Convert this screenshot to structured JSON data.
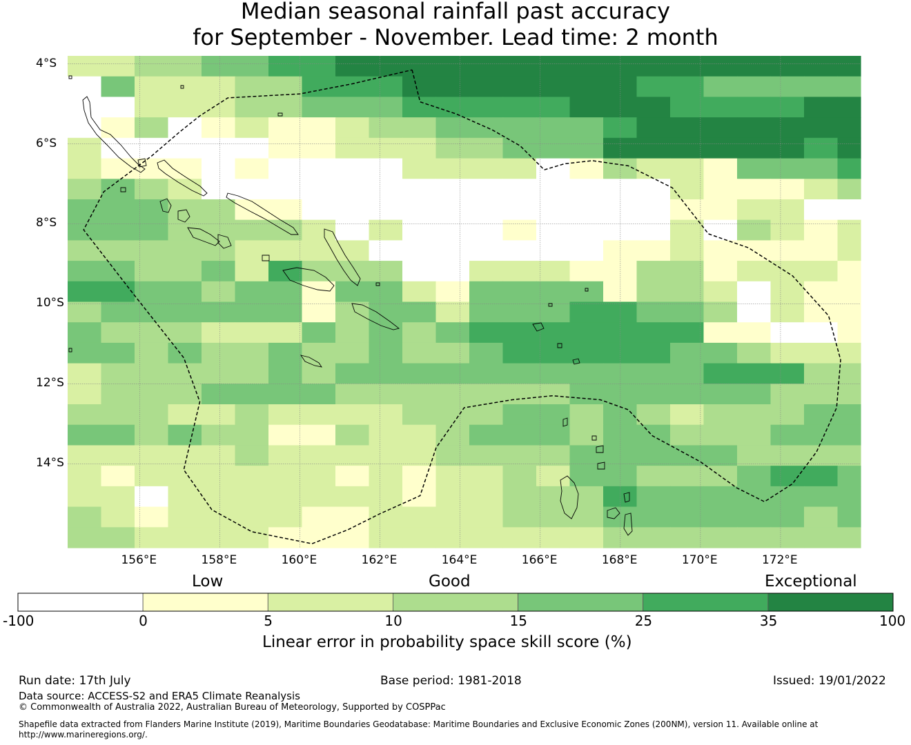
{
  "title": {
    "line1": "Median seasonal rainfall past accuracy",
    "line2": "for September - November. Lead time: 2 month"
  },
  "map": {
    "lon_range": [
      154.2,
      174.0
    ],
    "lat_range": [
      -16.1,
      -3.8
    ],
    "cell_size_deg": 0.833,
    "lat_ticks": [
      {
        "value": -4,
        "label": "4°S"
      },
      {
        "value": -6,
        "label": "6°S"
      },
      {
        "value": -8,
        "label": "8°S"
      },
      {
        "value": -10,
        "label": "10°S"
      },
      {
        "value": -12,
        "label": "12°S"
      },
      {
        "value": -14,
        "label": "14°S"
      }
    ],
    "lon_ticks": [
      {
        "value": 156,
        "label": "156°E"
      },
      {
        "value": 158,
        "label": "158°E"
      },
      {
        "value": 160,
        "label": "160°E"
      },
      {
        "value": 162,
        "label": "162°E"
      },
      {
        "value": 164,
        "label": "164°E"
      },
      {
        "value": 166,
        "label": "166°E"
      },
      {
        "value": 168,
        "label": "168°E"
      },
      {
        "value": 170,
        "label": "170°E"
      },
      {
        "value": 172,
        "label": "172°E"
      }
    ],
    "skill_class_grid": [
      "223344556666666666666666665566",
      "042223355566666665544444666666",
      "002223344455555666555566666666",
      "013012112334444456666666666566",
      "20000011222334446666665666665",
      "21110100002222013221444555555",
      "34320000000000000021112344455",
      "44433110000000000011220032344",
      "44433332020001000020321244444",
      "33333222200000001121111222222",
      "44334253330022211331222112222",
      "55443441442144441332021101102",
      "34444441344244455443021111001",
      "43332224343455555551100100100",
      "44343343343345555544322221110",
      "23333343444444444445553331100",
      "2333444433333334444443333222",
      "3332232222333443432333444432",
      "4434331132234443443334444431",
      "222223222223333444443333222",
      "212222221212232443334554333",
      "220222222212233354444444331",
      "321222211222233344444434311",
      "332222111222222233333333222"
    ],
    "eez_outline_deg": [
      [
        162.8,
        -4.15
      ],
      [
        163.0,
        -4.95
      ],
      [
        163.9,
        -5.25
      ],
      [
        164.8,
        -5.65
      ],
      [
        165.5,
        -6.05
      ],
      [
        166.1,
        -6.65
      ],
      [
        166.6,
        -6.5
      ],
      [
        167.3,
        -6.42
      ],
      [
        168.2,
        -6.55
      ],
      [
        169.3,
        -7.1
      ],
      [
        170.2,
        -8.25
      ],
      [
        171.2,
        -8.6
      ],
      [
        172.3,
        -9.3
      ],
      [
        173.2,
        -10.3
      ],
      [
        173.5,
        -11.4
      ],
      [
        173.4,
        -12.6
      ],
      [
        172.9,
        -13.7
      ],
      [
        172.3,
        -14.5
      ],
      [
        171.6,
        -14.95
      ],
      [
        170.9,
        -14.6
      ],
      [
        170.0,
        -13.95
      ],
      [
        168.8,
        -13.3
      ],
      [
        168.2,
        -12.65
      ],
      [
        167.5,
        -12.4
      ],
      [
        166.3,
        -12.3
      ],
      [
        165.3,
        -12.4
      ],
      [
        164.1,
        -12.6
      ],
      [
        163.4,
        -13.6
      ],
      [
        163.0,
        -14.8
      ],
      [
        162.0,
        -15.25
      ],
      [
        161.2,
        -15.65
      ],
      [
        160.3,
        -16.0
      ],
      [
        158.8,
        -15.7
      ],
      [
        157.8,
        -15.15
      ],
      [
        157.1,
        -14.15
      ],
      [
        157.5,
        -12.45
      ],
      [
        157.1,
        -11.35
      ],
      [
        155.8,
        -9.7
      ],
      [
        154.6,
        -8.15
      ],
      [
        155.1,
        -7.2
      ],
      [
        156.3,
        -6.3
      ],
      [
        157.0,
        -5.7
      ],
      [
        157.5,
        -5.3
      ],
      [
        158.2,
        -4.85
      ],
      [
        160.0,
        -4.75
      ],
      [
        161.3,
        -4.5
      ],
      [
        162.8,
        -4.15
      ]
    ]
  },
  "colorbar": {
    "category_labels": [
      "Low",
      "Good",
      "Exceptional"
    ],
    "tick_labels": [
      "-100",
      "0",
      "5",
      "10",
      "15",
      "25",
      "35",
      "100"
    ],
    "colors": [
      "#ffffff",
      "#ffffcc",
      "#d9f0a3",
      "#addd8e",
      "#78c679",
      "#41ab5d",
      "#238443"
    ],
    "axis_label": "Linear error in probability space skill score (%)"
  },
  "footer": {
    "run_date": "Run date: 17th July",
    "base_period": "Base period: 1981-2018",
    "issued": "Issued: 19/01/2022",
    "data_source": "Data source: ACCESS-S2 and ERA5 Climate Reanalysis",
    "copyright": "© Commonwealth of Australia 2022, Australian Bureau of Meteorology, Supported by COSPPac",
    "shapefile_line1": "Shapefile data extracted from Flanders Marine Institute (2019), Maritime Boundaries Geodatabase: Maritime Boundaries and Exclusive Economic Zones (200NM), version 11. Available online at",
    "shapefile_line2": "http://www.marineregions.org/."
  }
}
